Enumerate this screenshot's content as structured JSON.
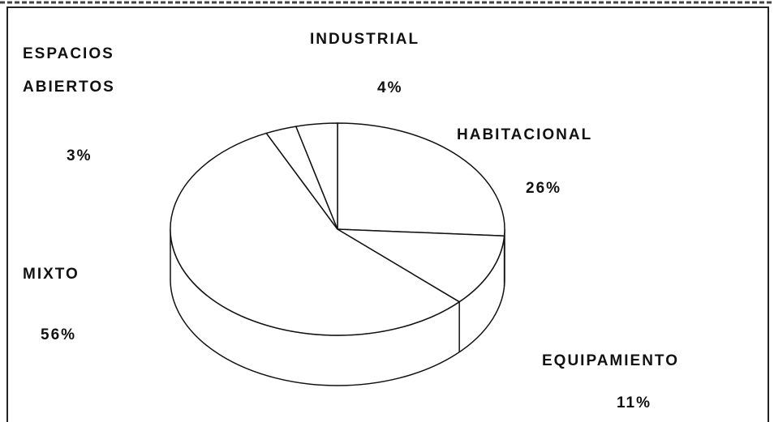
{
  "chart_data": {
    "type": "pie",
    "categories": [
      "HABITACIONAL",
      "EQUIPAMIENTO",
      "MIXTO",
      "ESPACIOS ABIERTOS",
      "INDUSTRIAL"
    ],
    "values": [
      26,
      11,
      56,
      3,
      4
    ],
    "value_labels": [
      "26%",
      "11%",
      "56%",
      "3%",
      "4%"
    ],
    "color": "#ffffff"
  }
}
